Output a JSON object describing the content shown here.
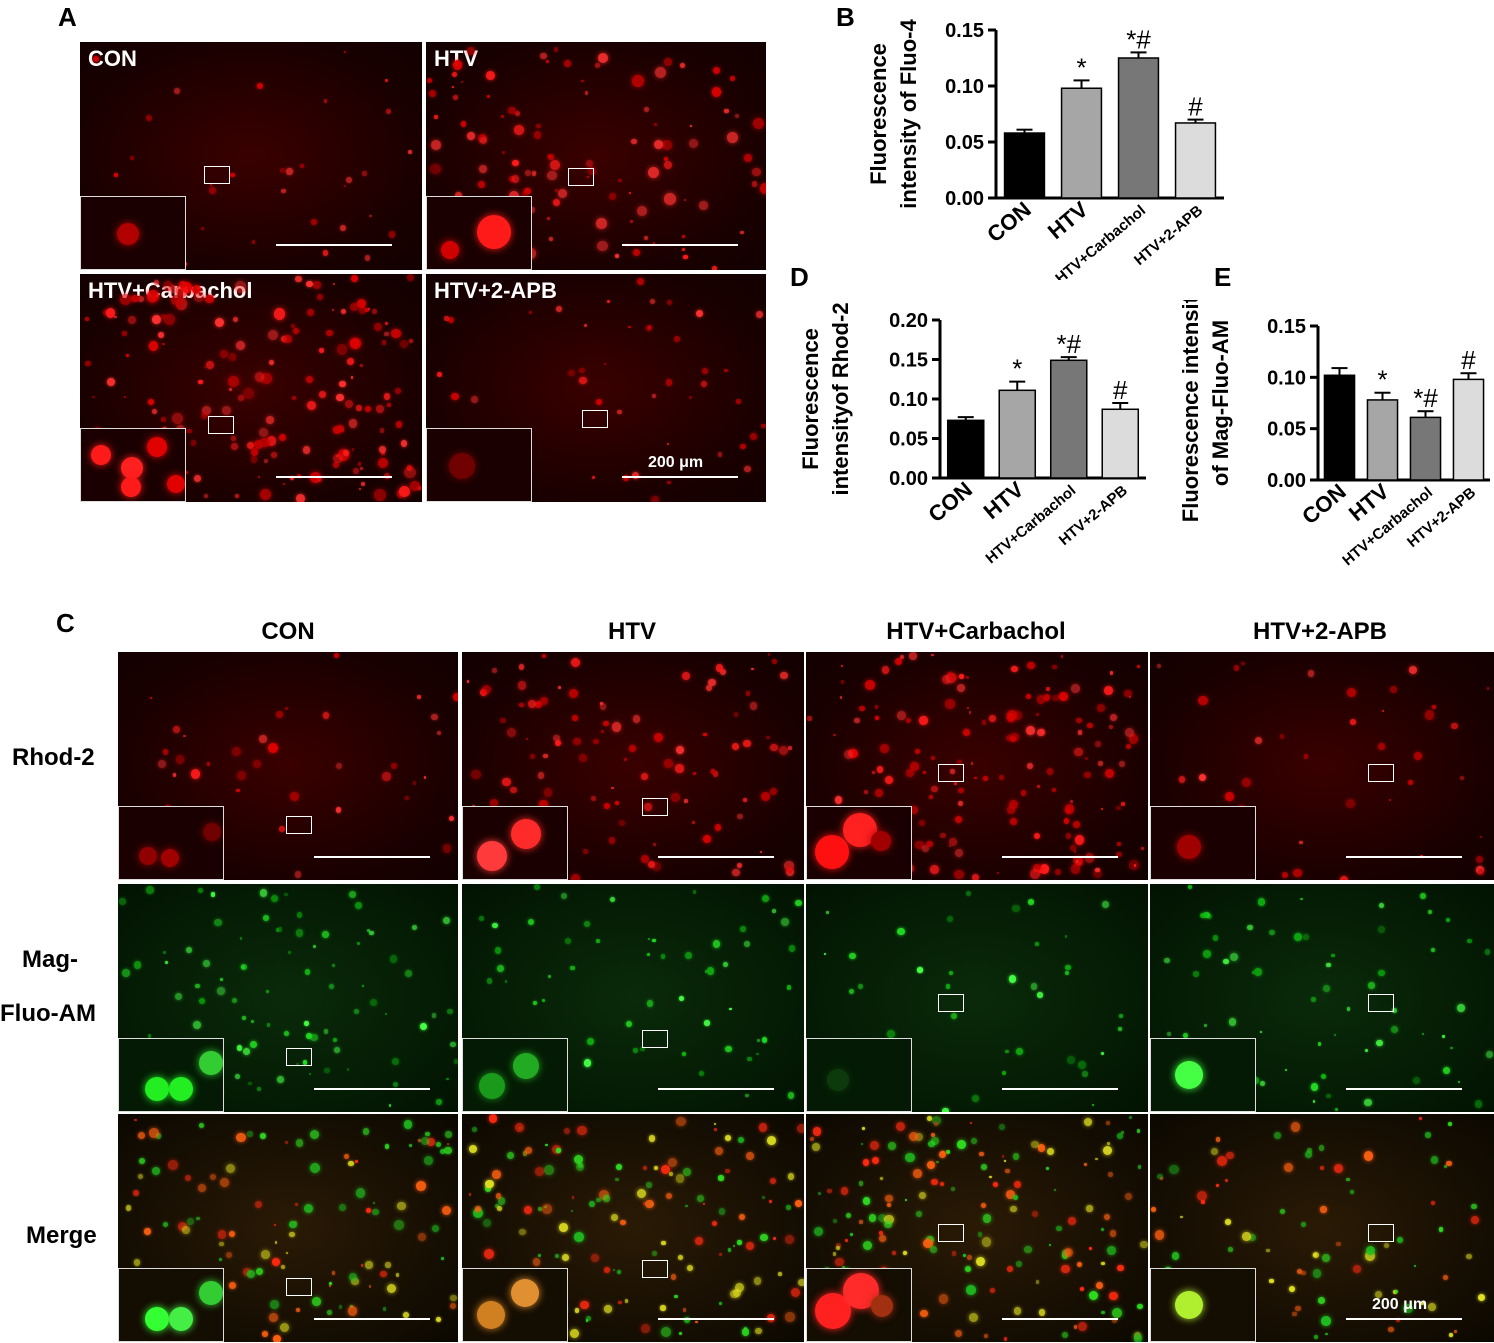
{
  "panel_letters": {
    "a": "A",
    "b": "B",
    "c": "C",
    "d": "D",
    "e": "E"
  },
  "panel_a": {
    "labels": [
      "CON",
      "HTV",
      "HTV+Carbachol",
      "HTV+2-APB"
    ],
    "scale_label": "200 μm"
  },
  "panel_c": {
    "col_headers": [
      "CON",
      "HTV",
      "HTV+Carbachol",
      "HTV+2-APB"
    ],
    "row_headers": [
      "Rhod-2",
      "Mag-",
      "Fluo-AM",
      "Merge"
    ],
    "scale_label": "200 μm"
  },
  "chart_data": [
    {
      "panel": "B",
      "type": "bar",
      "categories": [
        "CON",
        "HTV",
        "HTV+Carbachol",
        "HTV+2-APB"
      ],
      "values": [
        0.058,
        0.098,
        0.125,
        0.067
      ],
      "errors": [
        0.003,
        0.007,
        0.005,
        0.003
      ],
      "annotations": [
        "",
        "*",
        "*#",
        "#"
      ],
      "bar_colors": [
        "#000000",
        "#a6a6a6",
        "#777777",
        "#dcdcdc"
      ],
      "ylabel_lines": [
        "Fluorescence",
        "intensity of Fluo-4"
      ],
      "ylim": [
        0,
        0.15
      ],
      "yticks": [
        "0.00",
        "0.05",
        "0.10",
        "0.15"
      ]
    },
    {
      "panel": "D",
      "type": "bar",
      "categories": [
        "CON",
        "HTV",
        "HTV+Carbachol",
        "HTV+2-APB"
      ],
      "values": [
        0.073,
        0.111,
        0.149,
        0.087
      ],
      "errors": [
        0.004,
        0.011,
        0.004,
        0.008
      ],
      "annotations": [
        "",
        "*",
        "*#",
        "#"
      ],
      "bar_colors": [
        "#000000",
        "#a6a6a6",
        "#777777",
        "#dcdcdc"
      ],
      "ylabel_lines": [
        "Fluorescence",
        "intensityof Rhod-2"
      ],
      "ylim": [
        0,
        0.2
      ],
      "yticks": [
        "0.00",
        "0.05",
        "0.10",
        "0.15",
        "0.20"
      ]
    },
    {
      "panel": "E",
      "type": "bar",
      "categories": [
        "CON",
        "HTV",
        "HTV+Carbachol",
        "HTV+2-APB"
      ],
      "values": [
        0.102,
        0.078,
        0.061,
        0.098
      ],
      "errors": [
        0.007,
        0.007,
        0.006,
        0.006
      ],
      "annotations": [
        "",
        "*",
        "*#",
        "#"
      ],
      "bar_colors": [
        "#000000",
        "#a6a6a6",
        "#777777",
        "#dcdcdc"
      ],
      "ylabel_lines": [
        "Fluorescence intensity",
        "of Mag-Fluo-AM"
      ],
      "ylim": [
        0,
        0.15
      ],
      "yticks": [
        "0.00",
        "0.05",
        "0.10",
        "0.15"
      ]
    }
  ]
}
